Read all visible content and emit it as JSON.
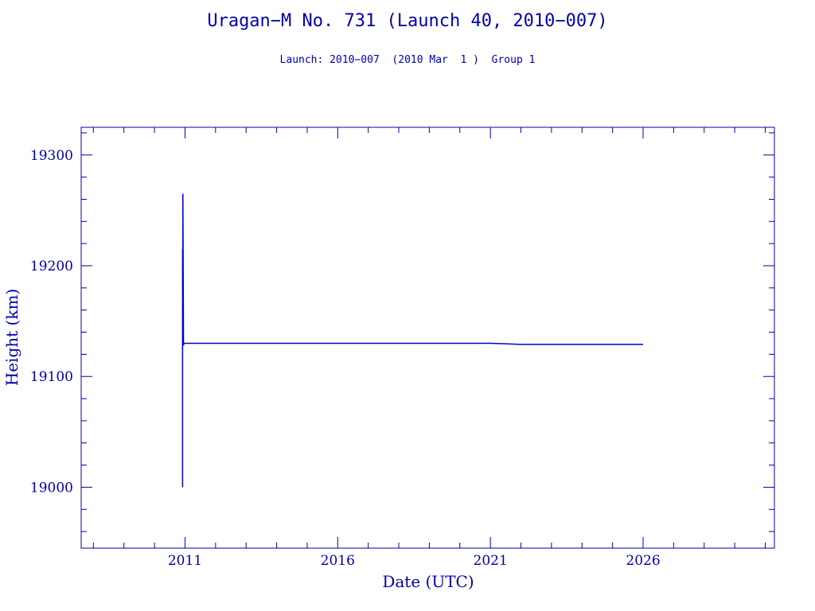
{
  "chart_data": {
    "type": "line",
    "title": "Uragan−M No. 731 (Launch 40, 2010−007)",
    "subtitle": "Launch: 2010−007  (2010 Mar  1 )  Group 1",
    "xlabel": "Date (UTC)",
    "ylabel": "Height (km)",
    "xlim": [
      2007.6,
      2030.3
    ],
    "ylim": [
      18945,
      19325
    ],
    "x_ticks": [
      2011,
      2016,
      2021,
      2026
    ],
    "y_ticks": [
      19000,
      19100,
      19200,
      19300
    ],
    "grid": false,
    "line_color": "#0000cc",
    "series": [
      {
        "x": [
          2010.92,
          2010.92,
          2010.92,
          2010.93,
          2010.93,
          2010.95,
          2010.95,
          2010.96,
          2011.0,
          2016.0,
          2019.0,
          2021.0,
          2022.0,
          2024.0,
          2026.0
        ],
        "y": [
          19000,
          19215,
          19128,
          19135,
          19265,
          19130,
          19128,
          19130,
          19130,
          19130,
          19130,
          19130,
          19129,
          19129,
          19129
        ]
      }
    ]
  }
}
